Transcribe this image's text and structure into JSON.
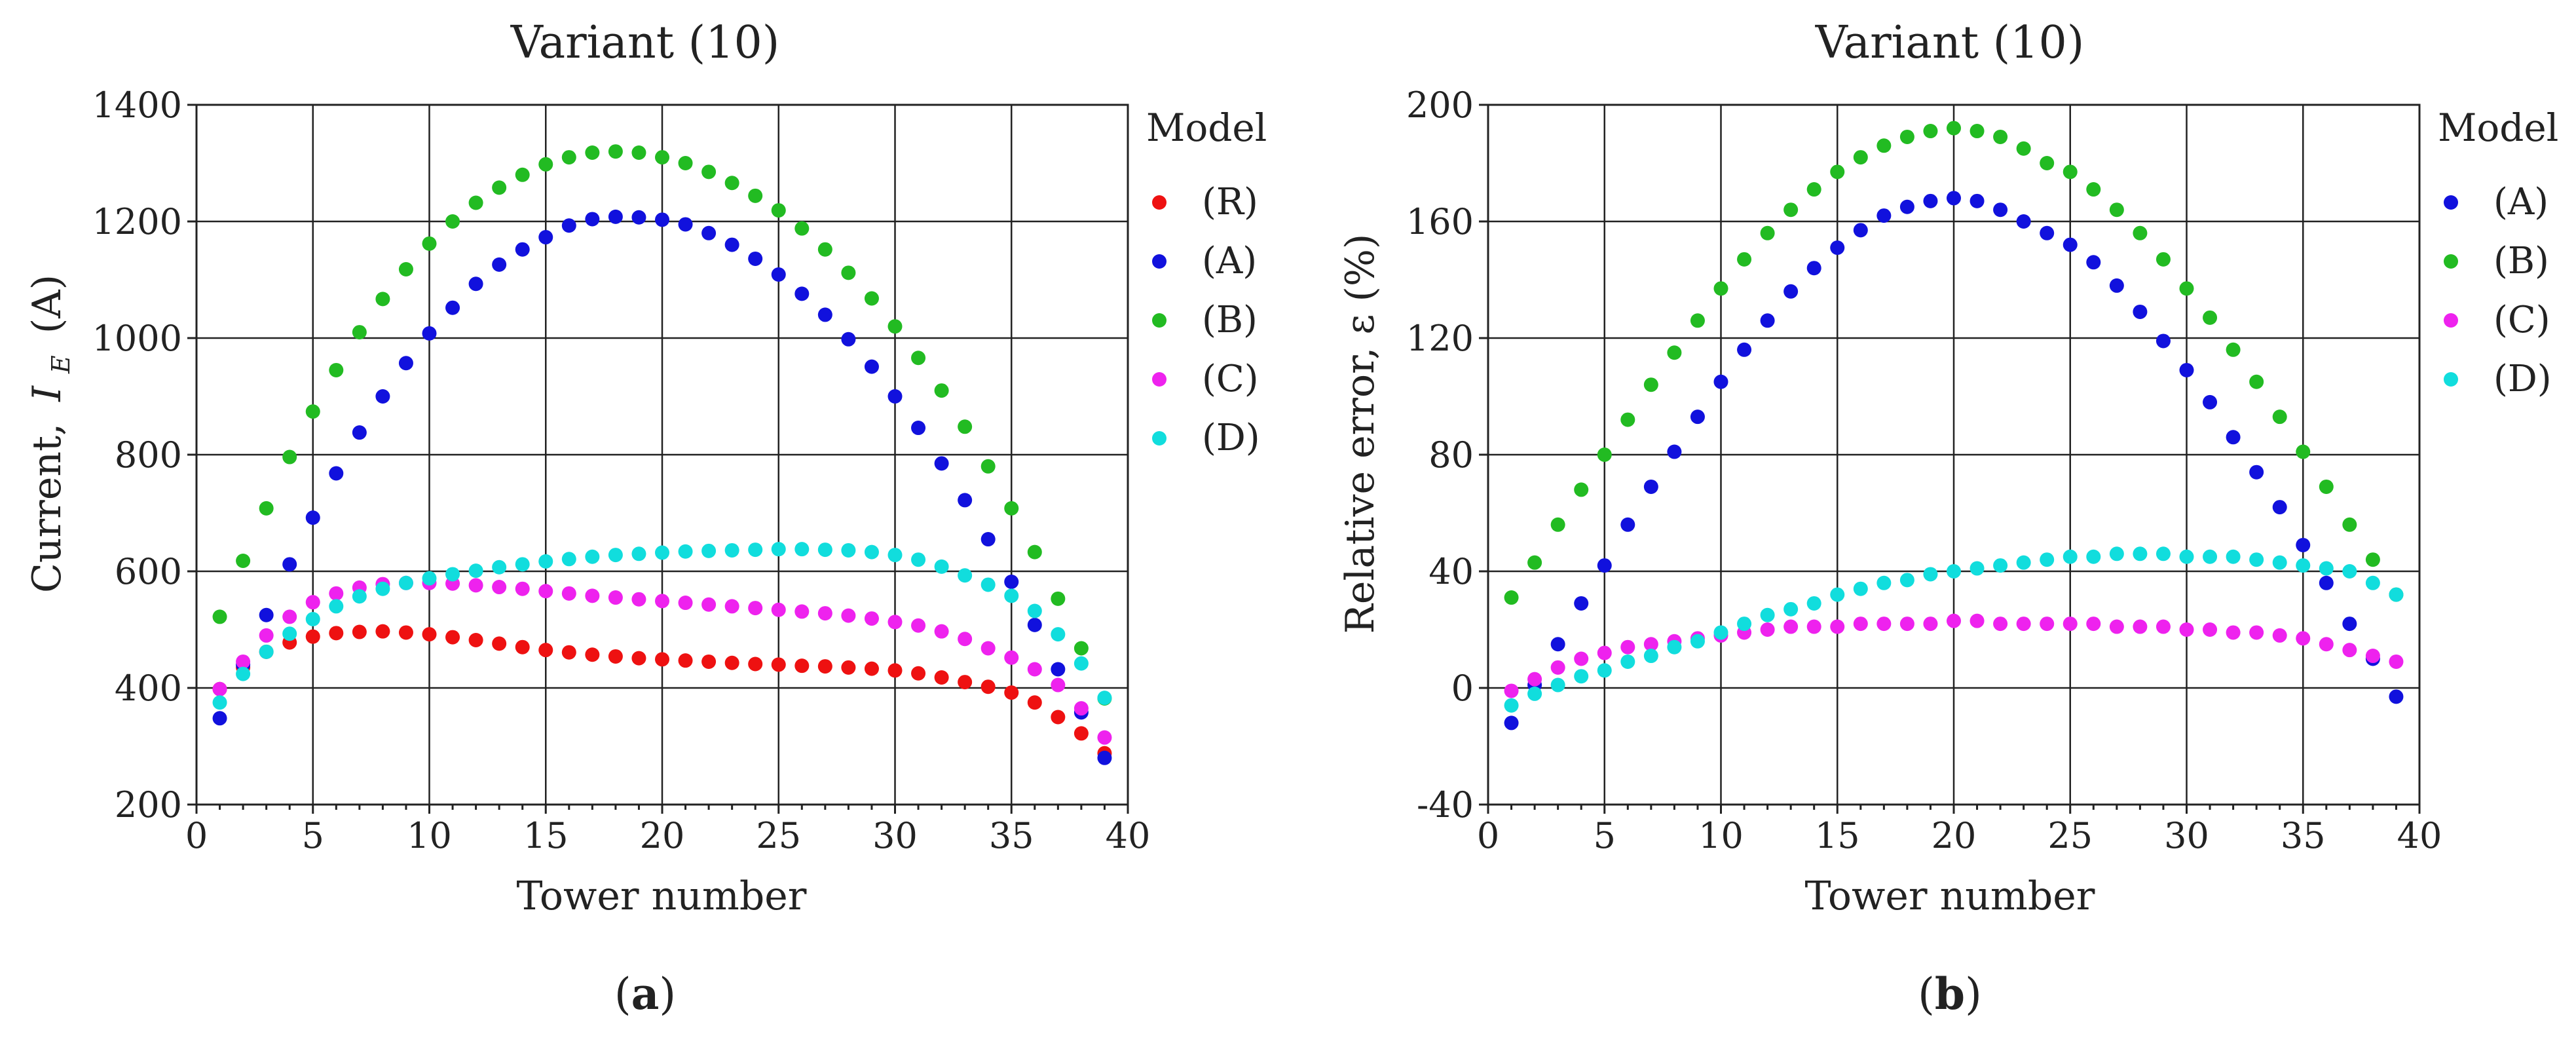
{
  "chart_data": [
    {
      "type": "scatter",
      "title": "Variant (10)",
      "xlabel": "Tower number",
      "ylabel_prefix": "Current,",
      "ylabel_var": "I",
      "ylabel_sub": "E",
      "ylabel_suffix": "(A)",
      "xlim": [
        0,
        40
      ],
      "ylim": [
        200,
        1400
      ],
      "xticks": [
        0,
        5,
        10,
        15,
        20,
        25,
        30,
        35,
        40
      ],
      "yticks": [
        200,
        400,
        600,
        800,
        1000,
        1200,
        1400
      ],
      "legend_title": "Model",
      "legend_position": "right",
      "panel_label": "a",
      "series": [
        {
          "name": "(R)",
          "color": "#ee1111",
          "x": [
            1,
            2,
            3,
            4,
            5,
            6,
            7,
            8,
            9,
            10,
            11,
            12,
            13,
            14,
            15,
            16,
            17,
            18,
            19,
            20,
            21,
            22,
            23,
            24,
            25,
            26,
            27,
            28,
            29,
            30,
            31,
            32,
            33,
            34,
            35,
            36,
            37,
            38,
            39
          ],
          "values": [
            398,
            435,
            462,
            478,
            488,
            494,
            496,
            497,
            495,
            492,
            487,
            482,
            476,
            470,
            465,
            461,
            457,
            454,
            451,
            449,
            447,
            445,
            443,
            441,
            440,
            438,
            437,
            435,
            433,
            430,
            425,
            418,
            410,
            402,
            392,
            375,
            350,
            322,
            288
          ]
        },
        {
          "name": "(A)",
          "color": "#1111dd",
          "x": [
            1,
            2,
            3,
            4,
            5,
            6,
            7,
            8,
            9,
            10,
            11,
            12,
            13,
            14,
            15,
            16,
            17,
            18,
            19,
            20,
            21,
            22,
            23,
            24,
            25,
            26,
            27,
            28,
            29,
            30,
            31,
            32,
            33,
            34,
            35,
            36,
            37,
            38,
            39
          ],
          "values": [
            348,
            440,
            525,
            612,
            692,
            768,
            838,
            900,
            957,
            1008,
            1052,
            1093,
            1126,
            1152,
            1173,
            1193,
            1204,
            1208,
            1207,
            1203,
            1195,
            1180,
            1160,
            1136,
            1109,
            1076,
            1040,
            998,
            951,
            900,
            846,
            785,
            722,
            655,
            582,
            508,
            432,
            358,
            280
          ]
        },
        {
          "name": "(B)",
          "color": "#22bb22",
          "x": [
            1,
            2,
            3,
            4,
            5,
            6,
            7,
            8,
            9,
            10,
            11,
            12,
            13,
            14,
            15,
            16,
            17,
            18,
            19,
            20,
            21,
            22,
            23,
            24,
            25,
            26,
            27,
            28,
            29,
            30,
            31,
            32,
            33,
            34,
            35,
            36,
            37,
            38,
            39
          ],
          "values": [
            522,
            618,
            708,
            796,
            874,
            945,
            1010,
            1067,
            1118,
            1162,
            1200,
            1232,
            1258,
            1280,
            1298,
            1310,
            1318,
            1320,
            1318,
            1310,
            1300,
            1285,
            1266,
            1244,
            1219,
            1188,
            1152,
            1112,
            1068,
            1020,
            966,
            910,
            848,
            780,
            708,
            633,
            553,
            468,
            382
          ]
        },
        {
          "name": "(C)",
          "color": "#ee22ee",
          "x": [
            1,
            2,
            3,
            4,
            5,
            6,
            7,
            8,
            9,
            10,
            11,
            12,
            13,
            14,
            15,
            16,
            17,
            18,
            19,
            20,
            21,
            22,
            23,
            24,
            25,
            26,
            27,
            28,
            29,
            30,
            31,
            32,
            33,
            34,
            35,
            36,
            37,
            38,
            39
          ],
          "values": [
            398,
            445,
            490,
            522,
            547,
            562,
            572,
            578,
            580,
            580,
            579,
            576,
            573,
            570,
            566,
            562,
            558,
            555,
            552,
            549,
            546,
            543,
            540,
            537,
            534,
            531,
            528,
            524,
            519,
            513,
            507,
            497,
            484,
            468,
            452,
            432,
            405,
            365,
            315
          ]
        },
        {
          "name": "(D)",
          "color": "#11dddd",
          "x": [
            1,
            2,
            3,
            4,
            5,
            6,
            7,
            8,
            9,
            10,
            11,
            12,
            13,
            14,
            15,
            16,
            17,
            18,
            19,
            20,
            21,
            22,
            23,
            24,
            25,
            26,
            27,
            28,
            29,
            30,
            31,
            32,
            33,
            34,
            35,
            36,
            37,
            38,
            39
          ],
          "values": [
            375,
            424,
            462,
            493,
            518,
            540,
            557,
            570,
            580,
            588,
            595,
            601,
            607,
            612,
            617,
            621,
            625,
            628,
            630,
            632,
            634,
            635,
            636,
            637,
            638,
            638,
            637,
            636,
            633,
            628,
            620,
            608,
            593,
            577,
            558,
            532,
            492,
            442,
            383
          ]
        }
      ]
    },
    {
      "type": "scatter",
      "title": "Variant (10)",
      "xlabel": "Tower number",
      "ylabel": "Relative error, ε (%)",
      "xlim": [
        0,
        40
      ],
      "ylim": [
        -40,
        200
      ],
      "xticks": [
        0,
        5,
        10,
        15,
        20,
        25,
        30,
        35,
        40
      ],
      "yticks": [
        -40,
        0,
        40,
        80,
        120,
        160,
        200
      ],
      "legend_title": "Model",
      "legend_position": "right",
      "panel_label": "b",
      "series": [
        {
          "name": "(A)",
          "color": "#1111dd",
          "x": [
            1,
            2,
            3,
            4,
            5,
            6,
            7,
            8,
            9,
            10,
            11,
            12,
            13,
            14,
            15,
            16,
            17,
            18,
            19,
            20,
            21,
            22,
            23,
            24,
            25,
            26,
            27,
            28,
            29,
            30,
            31,
            32,
            33,
            34,
            35,
            36,
            37,
            38,
            39
          ],
          "values": [
            -12,
            1,
            15,
            29,
            42,
            56,
            69,
            81,
            93,
            105,
            116,
            126,
            136,
            144,
            151,
            157,
            162,
            165,
            167,
            168,
            167,
            164,
            160,
            156,
            152,
            146,
            138,
            129,
            119,
            109,
            98,
            86,
            74,
            62,
            49,
            36,
            22,
            10,
            -3
          ]
        },
        {
          "name": "(B)",
          "color": "#22bb22",
          "x": [
            1,
            2,
            3,
            4,
            5,
            6,
            7,
            8,
            9,
            10,
            11,
            12,
            13,
            14,
            15,
            16,
            17,
            18,
            19,
            20,
            21,
            22,
            23,
            24,
            25,
            26,
            27,
            28,
            29,
            30,
            31,
            32,
            33,
            34,
            35,
            36,
            37,
            38,
            39
          ],
          "values": [
            31,
            43,
            56,
            68,
            80,
            92,
            104,
            115,
            126,
            137,
            147,
            156,
            164,
            171,
            177,
            182,
            186,
            189,
            191,
            192,
            191,
            189,
            185,
            180,
            177,
            171,
            164,
            156,
            147,
            137,
            127,
            116,
            105,
            93,
            81,
            69,
            56,
            44,
            32
          ]
        },
        {
          "name": "(C)",
          "color": "#ee22ee",
          "x": [
            1,
            2,
            3,
            4,
            5,
            6,
            7,
            8,
            9,
            10,
            11,
            12,
            13,
            14,
            15,
            16,
            17,
            18,
            19,
            20,
            21,
            22,
            23,
            24,
            25,
            26,
            27,
            28,
            29,
            30,
            31,
            32,
            33,
            34,
            35,
            36,
            37,
            38,
            39
          ],
          "values": [
            -1,
            3,
            7,
            10,
            12,
            14,
            15,
            16,
            17,
            18,
            19,
            20,
            21,
            21,
            21,
            22,
            22,
            22,
            22,
            23,
            23,
            22,
            22,
            22,
            22,
            22,
            21,
            21,
            21,
            20,
            20,
            19,
            19,
            18,
            17,
            15,
            13,
            11,
            9
          ]
        },
        {
          "name": "(D)",
          "color": "#11dddd",
          "x": [
            1,
            2,
            3,
            4,
            5,
            6,
            7,
            8,
            9,
            10,
            11,
            12,
            13,
            14,
            15,
            16,
            17,
            18,
            19,
            20,
            21,
            22,
            23,
            24,
            25,
            26,
            27,
            28,
            29,
            30,
            31,
            32,
            33,
            34,
            35,
            36,
            37,
            38,
            39
          ],
          "values": [
            -6,
            -2,
            1,
            4,
            6,
            9,
            11,
            14,
            16,
            19,
            22,
            25,
            27,
            29,
            32,
            34,
            36,
            37,
            39,
            40,
            41,
            42,
            43,
            44,
            45,
            45,
            46,
            46,
            46,
            45,
            45,
            45,
            44,
            43,
            42,
            41,
            40,
            36,
            32
          ]
        }
      ]
    }
  ]
}
